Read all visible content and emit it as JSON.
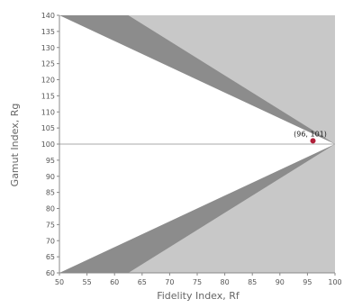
{
  "chart_data": {
    "type": "scatter",
    "title": "",
    "xlabel": "Fidelity Index, Rf",
    "ylabel": "Gamut Index, Rg",
    "xlim": [
      50,
      100
    ],
    "ylim": [
      60,
      140
    ],
    "x_ticks": [
      "50",
      "55",
      "60",
      "65",
      "70",
      "75",
      "80",
      "85",
      "90",
      "95",
      "100"
    ],
    "y_ticks": [
      "60",
      "65",
      "70",
      "75",
      "80",
      "85",
      "90",
      "95",
      "100",
      "105",
      "110",
      "115",
      "120",
      "125",
      "130",
      "135",
      "140"
    ],
    "reference_line_y": 100,
    "grid": false,
    "point": {
      "x": 96,
      "y": 101,
      "label": "(96, 101)"
    },
    "colors": {
      "outer_region": "#c8c8c8",
      "band_region": "#8c8c8c",
      "inner_region": "#ffffff",
      "point": "#b0203a",
      "axis": "#888888"
    }
  }
}
